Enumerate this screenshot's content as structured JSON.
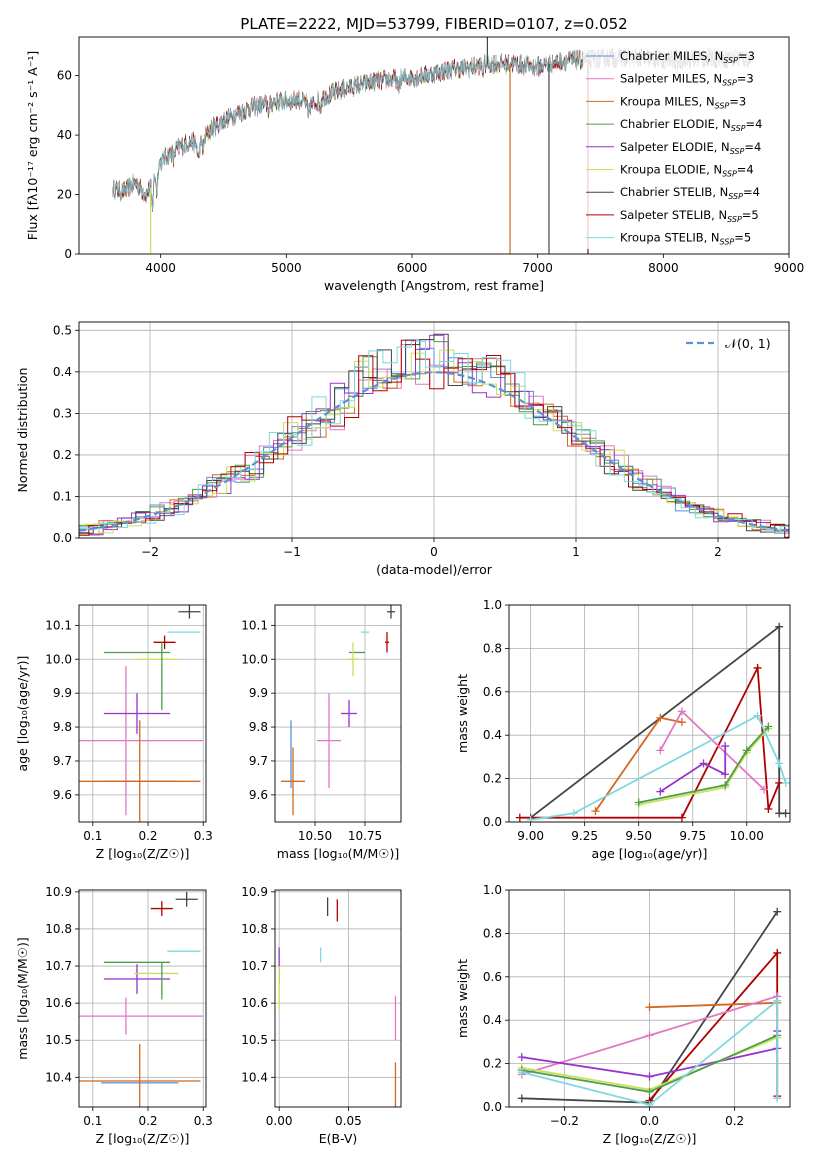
{
  "figure_title": "PLATE=2222, MJD=53799, FIBERID=0107, z=0.052",
  "colors": {
    "Chabrier MILES": "#5b8fd6",
    "Salpeter MILES": "#e377c2",
    "Kroupa MILES": "#d2691e",
    "Chabrier ELODIE": "#4c9c4c",
    "Salpeter ELODIE": "#9932cc",
    "Kroupa ELODIE": "#c8e05a",
    "Chabrier STELIB": "#444444",
    "Salpeter STELIB": "#b00000",
    "Kroupa STELIB": "#7fd8e0"
  },
  "chart_data": [
    {
      "id": "spectrum",
      "type": "line",
      "xlabel": "wavelength [Angstrom, rest frame]",
      "ylabel": "Flux [fλ10⁻¹⁷ erg cm⁻² s⁻¹ A⁻¹]",
      "xlim": [
        3350,
        9000
      ],
      "ylim": [
        0,
        73
      ],
      "xticks": [
        4000,
        5000,
        6000,
        7000,
        8000,
        9000
      ],
      "yticks": [
        0,
        20,
        40,
        60
      ],
      "legend_position": "top-right",
      "legend": [
        "Chabrier MILES, N_SSP=3",
        "Salpeter MILES, N_SSP=3",
        "Kroupa MILES, N_SSP=3",
        "Chabrier ELODIE, N_SSP=4",
        "Salpeter ELODIE, N_SSP=4",
        "Kroupa ELODIE, N_SSP=4",
        "Chabrier STELIB, N_SSP=4",
        "Salpeter STELIB, N_SSP=5",
        "Kroupa STELIB, N_SSP=5"
      ],
      "continuum": [
        [
          3620,
          22
        ],
        [
          3700,
          21
        ],
        [
          3800,
          24
        ],
        [
          3880,
          20
        ],
        [
          3930,
          23
        ],
        [
          3980,
          30
        ],
        [
          4050,
          33
        ],
        [
          4150,
          36
        ],
        [
          4250,
          38
        ],
        [
          4300,
          36
        ],
        [
          4400,
          42
        ],
        [
          4500,
          45
        ],
        [
          4700,
          49
        ],
        [
          4900,
          51
        ],
        [
          5100,
          52
        ],
        [
          5200,
          50
        ],
        [
          5300,
          53
        ],
        [
          5500,
          56
        ],
        [
          5700,
          58
        ],
        [
          5900,
          59
        ],
        [
          6100,
          60
        ],
        [
          6300,
          62
        ],
        [
          6500,
          63
        ],
        [
          6600,
          64
        ],
        [
          6800,
          64
        ],
        [
          7000,
          63
        ],
        [
          7200,
          65
        ],
        [
          7400,
          65.5
        ],
        [
          7600,
          66
        ],
        [
          7800,
          66
        ],
        [
          8000,
          65
        ],
        [
          8200,
          65.5
        ],
        [
          8400,
          66
        ],
        [
          8700,
          66
        ]
      ]
    },
    {
      "id": "residuals",
      "type": "line",
      "xlabel": "(data-model)/error",
      "ylabel": "Normed distribution",
      "xlim": [
        -2.5,
        2.5
      ],
      "ylim": [
        0,
        0.52
      ],
      "xticks": [
        -2,
        -1,
        0,
        1,
        2
      ],
      "yticks": [
        0.0,
        0.1,
        0.2,
        0.3,
        0.4,
        0.5
      ],
      "legend": [
        "𝒩(0, 1)"
      ],
      "legend_position": "top-right",
      "grid": true
    },
    {
      "id": "age-vs-Z",
      "type": "scatter",
      "xlabel": "Z [log₁₀(Z/Z☉)]",
      "ylabel": "age  [log₁₀(age/yr)]",
      "xlim": [
        0.075,
        0.305
      ],
      "ylim": [
        9.52,
        10.16
      ],
      "xticks": [
        0.1,
        0.2,
        0.3
      ],
      "yticks": [
        9.6,
        9.7,
        9.8,
        9.9,
        10.0,
        10.1
      ],
      "grid": true,
      "points": [
        {
          "series": "Chabrier MILES",
          "x": 0.185,
          "y": 9.64,
          "xerr": 0.07,
          "yerr": 0.0
        },
        {
          "series": "Salpeter MILES",
          "x": 0.16,
          "y": 9.76,
          "xerr": 0.14,
          "yerr": 0.22
        },
        {
          "series": "Kroupa MILES",
          "x": 0.185,
          "y": 9.64,
          "xerr": 0.11,
          "yerr": 0.18
        },
        {
          "series": "Chabrier ELODIE",
          "x": 0.18,
          "y": 10.02,
          "xerr": 0.06,
          "yerr": 0.0
        },
        {
          "series": "Salpeter ELODIE",
          "x": 0.18,
          "y": 9.84,
          "xerr": 0.06,
          "yerr": 0.06
        },
        {
          "series": "Kroupa ELODIE",
          "x": 0.215,
          "y": 10.0,
          "xerr": 0.04,
          "yerr": 0.0
        },
        {
          "series": "Chabrier STELIB",
          "x": 0.275,
          "y": 10.14,
          "xerr": 0.02,
          "yerr": 0.02
        },
        {
          "series": "Salpeter STELIB",
          "x": 0.23,
          "y": 10.05,
          "xerr": 0.02,
          "yerr": 0.02
        },
        {
          "series": "Kroupa STELIB",
          "x": 0.265,
          "y": 10.08,
          "xerr": 0.03,
          "yerr": 0.0
        },
        {
          "series": "Chabrier ELODIE",
          "x": 0.225,
          "y": 9.95,
          "xerr": 0.0,
          "yerr": 0.1
        }
      ]
    },
    {
      "id": "age-vs-mass",
      "type": "scatter",
      "xlabel": "mass [log₁₀(M/M☉)]",
      "ylabel": "",
      "xlim": [
        10.3,
        10.93
      ],
      "ylim": [
        9.52,
        10.16
      ],
      "xticks": [
        10.5,
        10.75
      ],
      "yticks": [
        9.6,
        9.7,
        9.8,
        9.9,
        10.0,
        10.1
      ],
      "grid": true,
      "points": [
        {
          "series": "Chabrier MILES",
          "x": 10.38,
          "y": 9.72,
          "xerr": 0.0,
          "yerr": 0.1
        },
        {
          "series": "Salpeter MILES",
          "x": 10.57,
          "y": 9.76,
          "xerr": 0.06,
          "yerr": 0.14
        },
        {
          "series": "Kroupa MILES",
          "x": 10.39,
          "y": 9.64,
          "xerr": 0.06,
          "yerr": 0.1
        },
        {
          "series": "Chabrier ELODIE",
          "x": 10.71,
          "y": 10.02,
          "xerr": 0.04,
          "yerr": 0.0
        },
        {
          "series": "Salpeter ELODIE",
          "x": 10.67,
          "y": 9.84,
          "xerr": 0.04,
          "yerr": 0.04
        },
        {
          "series": "Kroupa ELODIE",
          "x": 10.69,
          "y": 10.0,
          "xerr": 0.03,
          "yerr": 0.05
        },
        {
          "series": "Chabrier STELIB",
          "x": 10.88,
          "y": 10.14,
          "xerr": 0.02,
          "yerr": 0.02
        },
        {
          "series": "Salpeter STELIB",
          "x": 10.86,
          "y": 10.05,
          "xerr": 0.01,
          "yerr": 0.03
        },
        {
          "series": "Kroupa STELIB",
          "x": 10.75,
          "y": 10.08,
          "xerr": 0.02,
          "yerr": 0.0
        }
      ]
    },
    {
      "id": "mass-weight-vs-age",
      "type": "line",
      "xlabel": "age  [log₁₀(age/yr)]",
      "ylabel": "mass weight",
      "xlim": [
        8.9,
        10.2
      ],
      "ylim": [
        0.0,
        1.0
      ],
      "xticks": [
        9.0,
        9.25,
        9.5,
        9.75,
        10.0
      ],
      "yticks": [
        0.0,
        0.2,
        0.4,
        0.6,
        0.8,
        1.0
      ],
      "grid": true,
      "series": [
        {
          "name": "Chabrier STELIB",
          "points": [
            [
              9.0,
              0.02
            ],
            [
              10.15,
              0.9
            ],
            [
              10.15,
              0.04
            ],
            [
              10.18,
              0.04
            ]
          ]
        },
        {
          "name": "Salpeter STELIB",
          "points": [
            [
              8.95,
              0.02
            ],
            [
              9.7,
              0.02
            ],
            [
              10.05,
              0.71
            ],
            [
              10.1,
              0.06
            ],
            [
              10.15,
              0.18
            ]
          ]
        },
        {
          "name": "Kroupa MILES",
          "points": [
            [
              9.3,
              0.05
            ],
            [
              9.6,
              0.48
            ],
            [
              9.7,
              0.46
            ]
          ]
        },
        {
          "name": "Salpeter MILES",
          "points": [
            [
              9.6,
              0.33
            ],
            [
              9.7,
              0.51
            ],
            [
              10.08,
              0.15
            ]
          ]
        },
        {
          "name": "Salpeter ELODIE",
          "points": [
            [
              9.6,
              0.14
            ],
            [
              9.8,
              0.27
            ],
            [
              9.9,
              0.22
            ],
            [
              9.9,
              0.35
            ]
          ]
        },
        {
          "name": "Kroupa ELODIE",
          "points": [
            [
              9.5,
              0.08
            ],
            [
              9.9,
              0.16
            ],
            [
              10.0,
              0.32
            ],
            [
              10.1,
              0.43
            ]
          ]
        },
        {
          "name": "Chabrier ELODIE",
          "points": [
            [
              9.5,
              0.09
            ],
            [
              9.9,
              0.17
            ],
            [
              10.0,
              0.33
            ],
            [
              10.1,
              0.44
            ]
          ]
        },
        {
          "name": "Kroupa STELIB",
          "points": [
            [
              9.0,
              0.01
            ],
            [
              9.2,
              0.04
            ],
            [
              10.05,
              0.49
            ],
            [
              10.15,
              0.27
            ],
            [
              10.18,
              0.18
            ]
          ]
        }
      ]
    },
    {
      "id": "mass-vs-Z",
      "type": "scatter",
      "xlabel": "Z [log₁₀(Z/Z☉)]",
      "ylabel": "mass [log₁₀(M/M☉)]",
      "xlim": [
        0.075,
        0.305
      ],
      "ylim": [
        10.32,
        10.905
      ],
      "xticks": [
        0.1,
        0.2,
        0.3
      ],
      "yticks": [
        10.4,
        10.5,
        10.6,
        10.7,
        10.8,
        10.9
      ],
      "grid": true,
      "points": [
        {
          "series": "Chabrier MILES",
          "x": 0.185,
          "y": 10.385,
          "xerr": 0.07,
          "yerr": 0.0
        },
        {
          "series": "Salpeter MILES",
          "x": 0.16,
          "y": 10.565,
          "xerr": 0.14,
          "yerr": 0.05
        },
        {
          "series": "Kroupa MILES",
          "x": 0.185,
          "y": 10.39,
          "xerr": 0.11,
          "yerr": 0.1
        },
        {
          "series": "Chabrier ELODIE",
          "x": 0.18,
          "y": 10.71,
          "xerr": 0.06,
          "yerr": 0.0
        },
        {
          "series": "Salpeter ELODIE",
          "x": 0.18,
          "y": 10.665,
          "xerr": 0.06,
          "yerr": 0.04
        },
        {
          "series": "Kroupa ELODIE",
          "x": 0.215,
          "y": 10.68,
          "xerr": 0.04,
          "yerr": 0.0
        },
        {
          "series": "Chabrier STELIB",
          "x": 0.27,
          "y": 10.88,
          "xerr": 0.02,
          "yerr": 0.02
        },
        {
          "series": "Salpeter STELIB",
          "x": 0.225,
          "y": 10.855,
          "xerr": 0.02,
          "yerr": 0.02
        },
        {
          "series": "Kroupa STELIB",
          "x": 0.265,
          "y": 10.74,
          "xerr": 0.03,
          "yerr": 0.0
        },
        {
          "series": "Chabrier ELODIE",
          "x": 0.225,
          "y": 10.66,
          "xerr": 0.0,
          "yerr": 0.05
        }
      ]
    },
    {
      "id": "mass-vs-ebv",
      "type": "scatter",
      "xlabel": "E(B-V)",
      "ylabel": "",
      "xlim": [
        -0.003,
        0.088
      ],
      "ylim": [
        10.32,
        10.905
      ],
      "xticks": [
        0.0,
        0.05
      ],
      "yticks": [
        10.4,
        10.5,
        10.6,
        10.7,
        10.8,
        10.9
      ],
      "grid": true,
      "points": [
        {
          "series": "Chabrier STELIB",
          "x": 0.035,
          "y": 10.86,
          "xerr": 0.0,
          "yerr": 0.025
        },
        {
          "series": "Salpeter STELIB",
          "x": 0.042,
          "y": 10.85,
          "xerr": 0.0,
          "yerr": 0.03
        },
        {
          "series": "Kroupa STELIB",
          "x": 0.03,
          "y": 10.73,
          "xerr": 0.0,
          "yerr": 0.02
        },
        {
          "series": "Salpeter ELODIE",
          "x": 0.0,
          "y": 10.7,
          "xerr": 0.0,
          "yerr": 0.05
        },
        {
          "series": "Kroupa ELODIE",
          "x": 0.0,
          "y": 10.64,
          "xerr": 0.0,
          "yerr": 0.06
        },
        {
          "series": "Salpeter MILES",
          "x": 0.084,
          "y": 10.56,
          "xerr": 0.0,
          "yerr": 0.06
        },
        {
          "series": "Kroupa MILES",
          "x": 0.084,
          "y": 10.38,
          "xerr": 0.0,
          "yerr": 0.06
        }
      ]
    },
    {
      "id": "mass-weight-vs-Z",
      "type": "line",
      "xlabel": "Z [log₁₀(Z/Z☉)]",
      "ylabel": "mass weight",
      "xlim": [
        -0.33,
        0.33
      ],
      "ylim": [
        0.0,
        1.0
      ],
      "xticks": [
        -0.2,
        0.0,
        0.2
      ],
      "yticks": [
        0.0,
        0.2,
        0.4,
        0.6,
        0.8,
        1.0
      ],
      "grid": true,
      "series": [
        {
          "name": "Chabrier STELIB",
          "points": [
            [
              -0.3,
              0.04
            ],
            [
              0.0,
              0.02
            ],
            [
              0.3,
              0.9
            ]
          ]
        },
        {
          "name": "Salpeter STELIB",
          "points": [
            [
              0.0,
              0.03
            ],
            [
              0.3,
              0.71
            ],
            [
              0.3,
              0.05
            ]
          ]
        },
        {
          "name": "Kroupa MILES",
          "points": [
            [
              0.0,
              0.46
            ],
            [
              0.3,
              0.48
            ]
          ]
        },
        {
          "name": "Salpeter MILES",
          "points": [
            [
              -0.3,
              0.15
            ],
            [
              0.0,
              0.33
            ],
            [
              0.3,
              0.51
            ]
          ]
        },
        {
          "name": "Salpeter ELODIE",
          "points": [
            [
              -0.3,
              0.23
            ],
            [
              0.0,
              0.14
            ],
            [
              0.3,
              0.27
            ],
            [
              0.3,
              0.35
            ]
          ]
        },
        {
          "name": "Kroupa ELODIE",
          "points": [
            [
              -0.3,
              0.18
            ],
            [
              0.0,
              0.08
            ],
            [
              0.3,
              0.32
            ]
          ]
        },
        {
          "name": "Chabrier ELODIE",
          "points": [
            [
              -0.3,
              0.17
            ],
            [
              0.0,
              0.07
            ],
            [
              0.3,
              0.33
            ]
          ]
        },
        {
          "name": "Kroupa STELIB",
          "points": [
            [
              -0.3,
              0.16
            ],
            [
              0.0,
              0.01
            ],
            [
              0.3,
              0.49
            ],
            [
              0.3,
              0.04
            ]
          ]
        }
      ]
    }
  ]
}
